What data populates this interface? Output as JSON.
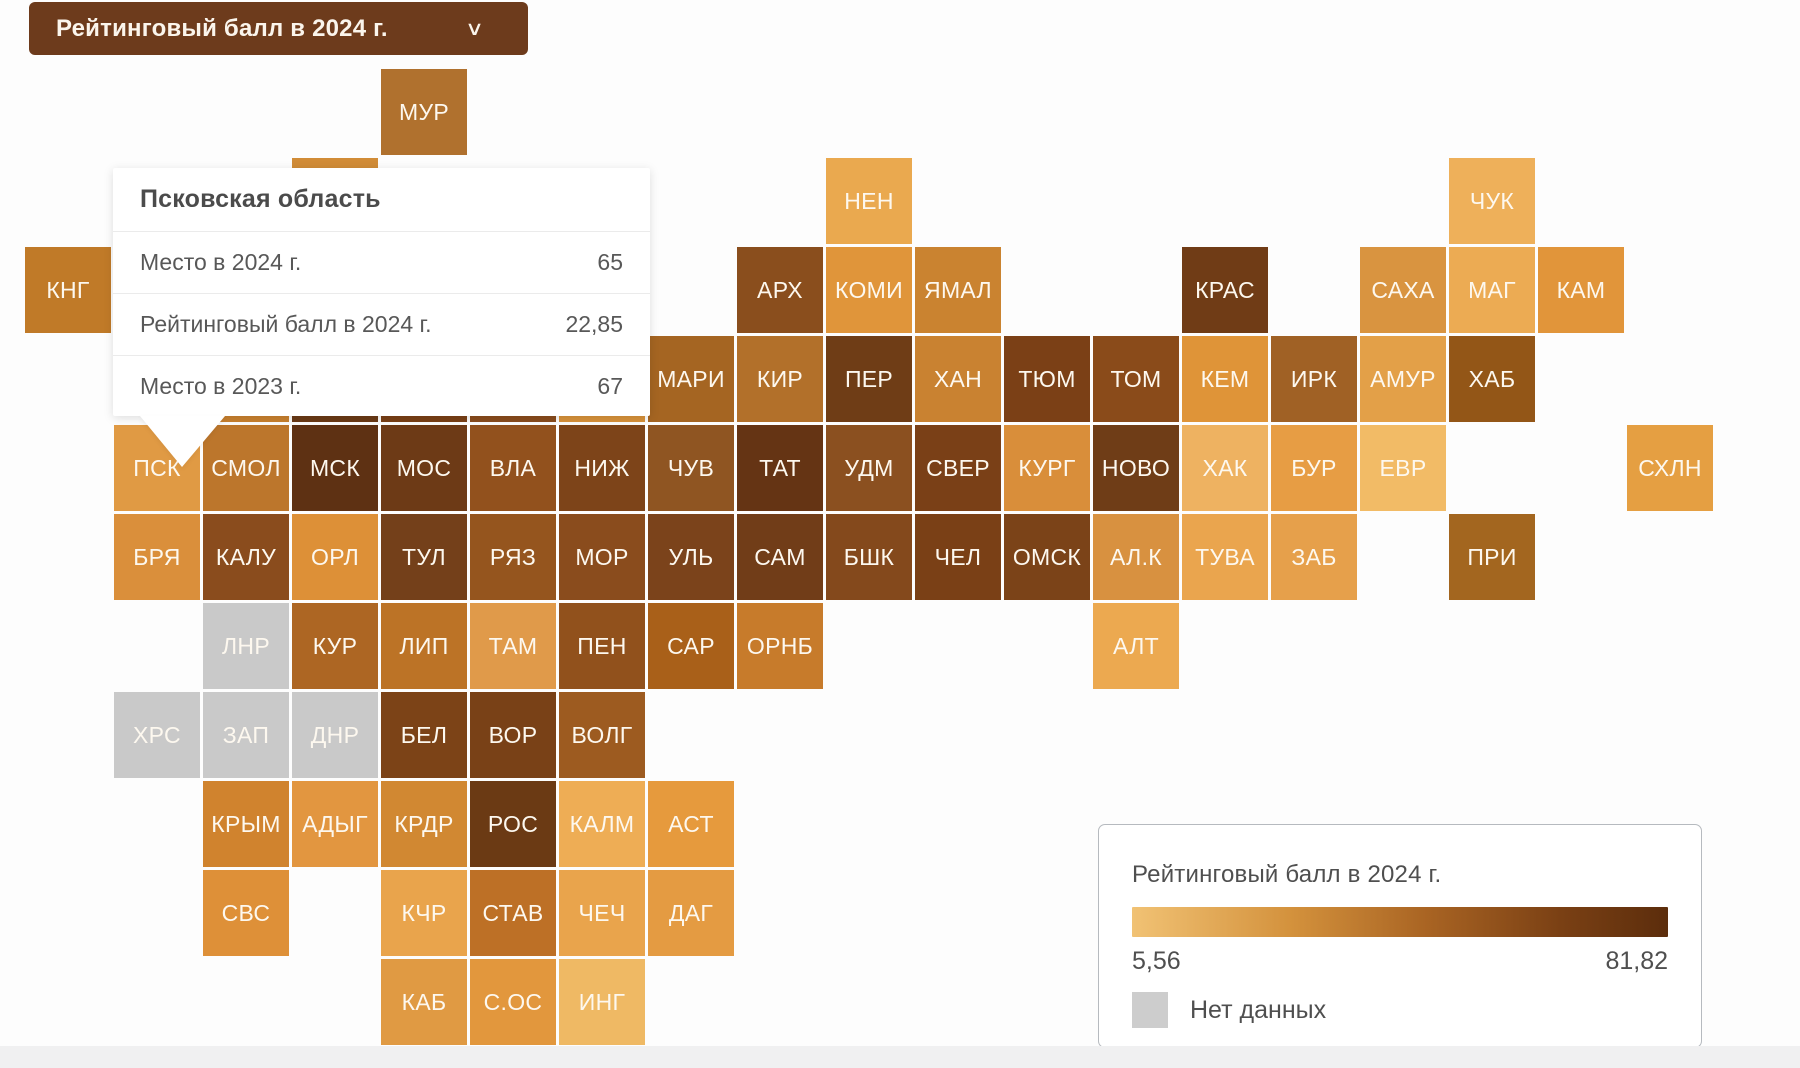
{
  "controls": {
    "metric_dropdown": {
      "label": "Рейтинговый балл в 2024 г.",
      "chevron": "∨"
    }
  },
  "tooltip": {
    "title": "Псковская область",
    "rows": [
      {
        "label": "Место в 2024 г.",
        "value": "65"
      },
      {
        "label": "Рейтинговый балл в 2024 г.",
        "value": "22,85"
      },
      {
        "label": "Место в 2023 г.",
        "value": "67"
      }
    ]
  },
  "legend": {
    "title": "Рейтинговый балл в 2024 г.",
    "min": "5,56",
    "max": "81,82",
    "no_data_label": "Нет данных",
    "no_data_color": "#cdcdcd",
    "gradient_start": "#f1c274",
    "gradient_end": "#5c2d0c"
  },
  "map": {
    "tiles": [
      {
        "r": 0,
        "c": 4,
        "label": "МУР",
        "color": "#b0712e"
      },
      {
        "r": 1,
        "c": 3,
        "label": "",
        "color": "#d18c37"
      },
      {
        "r": 1,
        "c": 9,
        "label": "НЕН",
        "color": "#eaa94f"
      },
      {
        "r": 1,
        "c": 16,
        "label": "ЧУК",
        "color": "#eeb05a"
      },
      {
        "r": 2,
        "c": 0,
        "label": "КНГ",
        "color": "#c07a28"
      },
      {
        "r": 2,
        "c": 8,
        "label": "АРХ",
        "color": "#8a4e1d"
      },
      {
        "r": 2,
        "c": 9,
        "label": "КОМИ",
        "color": "#e0953a"
      },
      {
        "r": 2,
        "c": 10,
        "label": "ЯМАЛ",
        "color": "#ca8330"
      },
      {
        "r": 2,
        "c": 13,
        "label": "КРАС",
        "color": "#703c16"
      },
      {
        "r": 2,
        "c": 15,
        "label": "САХА",
        "color": "#d99440"
      },
      {
        "r": 2,
        "c": 16,
        "label": "МАГ",
        "color": "#ecab53"
      },
      {
        "r": 2,
        "c": 17,
        "label": "КАМ",
        "color": "#e1953a"
      },
      {
        "r": 3,
        "c": 2,
        "label": "",
        "color": "#c9812f"
      },
      {
        "r": 3,
        "c": 3,
        "label": "",
        "color": "#6b3a16"
      },
      {
        "r": 3,
        "c": 4,
        "label": "",
        "color": "#7a4016"
      },
      {
        "r": 3,
        "c": 5,
        "label": "",
        "color": "#8a4c1d"
      },
      {
        "r": 3,
        "c": 6,
        "label": "",
        "color": "#d8923b"
      },
      {
        "r": 3,
        "c": 7,
        "label": "МАРИ",
        "color": "#a56522"
      },
      {
        "r": 3,
        "c": 8,
        "label": "КИР",
        "color": "#b2702a"
      },
      {
        "r": 3,
        "c": 9,
        "label": "ПЕР",
        "color": "#6f3d16"
      },
      {
        "r": 3,
        "c": 10,
        "label": "ХАН",
        "color": "#c98231"
      },
      {
        "r": 3,
        "c": 11,
        "label": "ТЮМ",
        "color": "#7b4016"
      },
      {
        "r": 3,
        "c": 12,
        "label": "ТОМ",
        "color": "#8a4b1a"
      },
      {
        "r": 3,
        "c": 13,
        "label": "КЕМ",
        "color": "#df9438"
      },
      {
        "r": 3,
        "c": 14,
        "label": "ИРК",
        "color": "#a06125"
      },
      {
        "r": 3,
        "c": 15,
        "label": "АМУР",
        "color": "#e3a048"
      },
      {
        "r": 3,
        "c": 16,
        "label": "ХАБ",
        "color": "#935617"
      },
      {
        "r": 4,
        "c": 1,
        "label": "ПСК",
        "color": "#e09a44"
      },
      {
        "r": 4,
        "c": 2,
        "label": "СМОЛ",
        "color": "#bc762c"
      },
      {
        "r": 4,
        "c": 3,
        "label": "МСК",
        "color": "#5e3113"
      },
      {
        "r": 4,
        "c": 4,
        "label": "МОС",
        "color": "#6d3a16"
      },
      {
        "r": 4,
        "c": 5,
        "label": "ВЛА",
        "color": "#92511d"
      },
      {
        "r": 4,
        "c": 6,
        "label": "НИЖ",
        "color": "#7d4419"
      },
      {
        "r": 4,
        "c": 7,
        "label": "ЧУВ",
        "color": "#8f5522"
      },
      {
        "r": 4,
        "c": 8,
        "label": "ТАТ",
        "color": "#653414"
      },
      {
        "r": 4,
        "c": 9,
        "label": "УДМ",
        "color": "#8b5020"
      },
      {
        "r": 4,
        "c": 10,
        "label": "СВЕР",
        "color": "#7a4017"
      },
      {
        "r": 4,
        "c": 11,
        "label": "КУРГ",
        "color": "#d98e3a"
      },
      {
        "r": 4,
        "c": 12,
        "label": "НОВО",
        "color": "#6f3d17"
      },
      {
        "r": 4,
        "c": 13,
        "label": "ХАК",
        "color": "#eeb261"
      },
      {
        "r": 4,
        "c": 14,
        "label": "БУР",
        "color": "#e79d44"
      },
      {
        "r": 4,
        "c": 15,
        "label": "ЕВР",
        "color": "#f2bb66"
      },
      {
        "r": 4,
        "c": 18,
        "label": "СХЛН",
        "color": "#e59f42"
      },
      {
        "r": 5,
        "c": 1,
        "label": "БРЯ",
        "color": "#da8f3b"
      },
      {
        "r": 5,
        "c": 2,
        "label": "КАЛУ",
        "color": "#8a4c1d"
      },
      {
        "r": 5,
        "c": 3,
        "label": "ОРЛ",
        "color": "#dd9037"
      },
      {
        "r": 5,
        "c": 4,
        "label": "ТУЛ",
        "color": "#74401a"
      },
      {
        "r": 5,
        "c": 5,
        "label": "РЯЗ",
        "color": "#95551e"
      },
      {
        "r": 5,
        "c": 6,
        "label": "МОР",
        "color": "#8a4c1d"
      },
      {
        "r": 5,
        "c": 7,
        "label": "УЛЬ",
        "color": "#7b431b"
      },
      {
        "r": 5,
        "c": 8,
        "label": "САМ",
        "color": "#713d18"
      },
      {
        "r": 5,
        "c": 9,
        "label": "БШК",
        "color": "#84491c"
      },
      {
        "r": 5,
        "c": 10,
        "label": "ЧЕЛ",
        "color": "#7a4016"
      },
      {
        "r": 5,
        "c": 11,
        "label": "ОМСК",
        "color": "#7b4318"
      },
      {
        "r": 5,
        "c": 12,
        "label": "АЛ.К",
        "color": "#d89140"
      },
      {
        "r": 5,
        "c": 13,
        "label": "ТУВА",
        "color": "#eaa54e"
      },
      {
        "r": 5,
        "c": 14,
        "label": "ЗАБ",
        "color": "#e6a04b"
      },
      {
        "r": 5,
        "c": 16,
        "label": "ПРИ",
        "color": "#a3661f"
      },
      {
        "r": 6,
        "c": 2,
        "label": "ЛНР",
        "color": "#c9c9c9"
      },
      {
        "r": 6,
        "c": 3,
        "label": "КУР",
        "color": "#ad6623"
      },
      {
        "r": 6,
        "c": 4,
        "label": "ЛИП",
        "color": "#bc7326"
      },
      {
        "r": 6,
        "c": 5,
        "label": "ТАМ",
        "color": "#e09a4a"
      },
      {
        "r": 6,
        "c": 6,
        "label": "ПЕН",
        "color": "#91511c"
      },
      {
        "r": 6,
        "c": 7,
        "label": "САР",
        "color": "#a96019"
      },
      {
        "r": 6,
        "c": 8,
        "label": "ОРНБ",
        "color": "#c77b2b"
      },
      {
        "r": 6,
        "c": 12,
        "label": "АЛТ",
        "color": "#eca950"
      },
      {
        "r": 7,
        "c": 1,
        "label": "ХРС",
        "color": "#c9c9c9"
      },
      {
        "r": 7,
        "c": 2,
        "label": "ЗАП",
        "color": "#c9c9c9"
      },
      {
        "r": 7,
        "c": 3,
        "label": "ДНР",
        "color": "#c9c9c9"
      },
      {
        "r": 7,
        "c": 4,
        "label": "БЕЛ",
        "color": "#7c4317"
      },
      {
        "r": 7,
        "c": 5,
        "label": "ВОР",
        "color": "#794117"
      },
      {
        "r": 7,
        "c": 6,
        "label": "ВОЛГ",
        "color": "#9d5b20"
      },
      {
        "r": 8,
        "c": 2,
        "label": "КРЫМ",
        "color": "#d0832e"
      },
      {
        "r": 8,
        "c": 3,
        "label": "АДЫГ",
        "color": "#e29640"
      },
      {
        "r": 8,
        "c": 4,
        "label": "КРДР",
        "color": "#d18832"
      },
      {
        "r": 8,
        "c": 5,
        "label": "РОС",
        "color": "#6b3a14"
      },
      {
        "r": 8,
        "c": 6,
        "label": "КАЛМ",
        "color": "#eead55"
      },
      {
        "r": 8,
        "c": 7,
        "label": "АСТ",
        "color": "#e69a3d"
      },
      {
        "r": 9,
        "c": 2,
        "label": "СВС",
        "color": "#de9038"
      },
      {
        "r": 9,
        "c": 4,
        "label": "КЧР",
        "color": "#e9a44c"
      },
      {
        "r": 9,
        "c": 5,
        "label": "СТАВ",
        "color": "#bd7026"
      },
      {
        "r": 9,
        "c": 6,
        "label": "ЧЕЧ",
        "color": "#e9a44c"
      },
      {
        "r": 9,
        "c": 7,
        "label": "ДАГ",
        "color": "#e49b42"
      },
      {
        "r": 10,
        "c": 4,
        "label": "КАБ",
        "color": "#e09a43"
      },
      {
        "r": 10,
        "c": 5,
        "label": "С.ОС",
        "color": "#e2973d"
      },
      {
        "r": 10,
        "c": 6,
        "label": "ИНГ",
        "color": "#efb964"
      }
    ]
  },
  "chart_data": {
    "type": "heatmap",
    "subtype": "tile-cartogram-of-russian-regions",
    "title": "Рейтинговый балл в 2024 г.",
    "color_scale": {
      "min": 5.56,
      "max": 81.82,
      "min_color": "#f1c274",
      "max_color": "#5c2d0c",
      "no_data_color": "#cdcdcd"
    },
    "no_data_regions": [
      "ЛНР",
      "ХРС",
      "ЗАП",
      "ДНР"
    ],
    "highlighted_region": {
      "tile": "ПСК",
      "name": "Псковская область",
      "place_2024": 65,
      "rating_2024": 22.85,
      "place_2023": 67
    },
    "visible_region_tiles": [
      "МУР",
      "НЕН",
      "ЧУК",
      "КНГ",
      "АРХ",
      "КОМИ",
      "ЯМАЛ",
      "КРАС",
      "САХА",
      "МАГ",
      "КАМ",
      "МАРИ",
      "КИР",
      "ПЕР",
      "ХАН",
      "ТЮМ",
      "ТОМ",
      "КЕМ",
      "ИРК",
      "АМУР",
      "ХАБ",
      "ПСК",
      "СМОЛ",
      "МСК",
      "МОС",
      "ВЛА",
      "НИЖ",
      "ЧУВ",
      "ТАТ",
      "УДМ",
      "СВЕР",
      "КУРГ",
      "НОВО",
      "ХАК",
      "БУР",
      "ЕВР",
      "СХЛН",
      "БРЯ",
      "КАЛУ",
      "ОРЛ",
      "ТУЛ",
      "РЯЗ",
      "МОР",
      "УЛЬ",
      "САМ",
      "БШК",
      "ЧЕЛ",
      "ОМСК",
      "АЛ.К",
      "ТУВА",
      "ЗАБ",
      "ПРИ",
      "ЛНР",
      "КУР",
      "ЛИП",
      "ТАМ",
      "ПЕН",
      "САР",
      "ОРНБ",
      "АЛТ",
      "ХРС",
      "ЗАП",
      "ДНР",
      "БЕЛ",
      "ВОР",
      "ВОЛГ",
      "КРЫМ",
      "АДЫГ",
      "КРДР",
      "РОС",
      "КАЛМ",
      "АСТ",
      "СВС",
      "КЧР",
      "СТАВ",
      "ЧЕЧ",
      "ДАГ",
      "КАБ",
      "С.ОС",
      "ИНГ"
    ]
  }
}
